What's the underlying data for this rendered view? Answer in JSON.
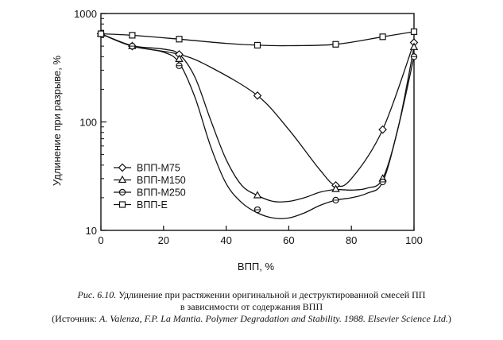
{
  "chart_data": {
    "type": "line",
    "ylabel": "Удлинение при разрыве, %",
    "xlabel": "ВПП, %",
    "x_ticks": [
      "0",
      "20",
      "40",
      "60",
      "80",
      "100"
    ],
    "y_ticks": [
      "10",
      "100",
      "1000"
    ],
    "xlim": [
      0,
      100
    ],
    "ylim": [
      10,
      1000
    ],
    "y_scale": "log",
    "legend_position": "bottom-left",
    "series": [
      {
        "name": "ВПП-М75",
        "marker": "diamond",
        "x": [
          0,
          10,
          25,
          50,
          75,
          90,
          100
        ],
        "y": [
          650,
          500,
          420,
          175,
          26,
          85,
          540
        ],
        "curve_x": [
          0,
          10,
          25,
          35,
          50,
          60,
          70,
          75,
          80,
          90,
          100
        ],
        "curve_y": [
          650,
          500,
          420,
          320,
          175,
          85,
          36,
          26,
          30,
          85,
          540
        ]
      },
      {
        "name": "ВПП-М150",
        "marker": "triangle",
        "x": [
          0,
          10,
          25,
          50,
          75,
          90,
          100
        ],
        "y": [
          650,
          500,
          380,
          21,
          24,
          30,
          490
        ],
        "curve_x": [
          0,
          10,
          20,
          25,
          30,
          35,
          40,
          45,
          50,
          55,
          60,
          65,
          70,
          75,
          80,
          85,
          90,
          95,
          100
        ],
        "curve_y": [
          650,
          505,
          470,
          420,
          260,
          105,
          45,
          26,
          21,
          18.5,
          18.5,
          20,
          22.5,
          23.8,
          23.5,
          24.5,
          30,
          90,
          490
        ]
      },
      {
        "name": "ВПП-М250",
        "marker": "circle",
        "x": [
          0,
          10,
          25,
          50,
          75,
          90,
          100
        ],
        "y": [
          650,
          500,
          330,
          15.5,
          19,
          28,
          400
        ],
        "curve_x": [
          0,
          10,
          20,
          25,
          30,
          35,
          40,
          45,
          50,
          55,
          60,
          65,
          70,
          75,
          80,
          85,
          90,
          95,
          100
        ],
        "curve_y": [
          650,
          500,
          440,
          350,
          170,
          60,
          27,
          18,
          14.5,
          13,
          13,
          14.5,
          17,
          19,
          20,
          22,
          28,
          90,
          400
        ]
      },
      {
        "name": "ВПП-Е",
        "marker": "square",
        "x": [
          0,
          10,
          25,
          50,
          75,
          90,
          100
        ],
        "y": [
          650,
          630,
          580,
          510,
          520,
          610,
          680
        ],
        "curve_x": [
          0,
          10,
          25,
          40,
          50,
          60,
          75,
          90,
          100
        ],
        "curve_y": [
          650,
          630,
          580,
          530,
          510,
          505,
          520,
          610,
          680
        ]
      }
    ]
  },
  "caption": {
    "fig_label": "Рис. 6.10.",
    "line1": "Удлинение при растяжении оригинальной и деструктированной смесей ПП",
    "line2": "в зависимости от содержания ВПП",
    "source_open": "(Источник: ",
    "source_italic": "A. Valenza, F.P. La Mantia. Polymer Degradation and Stability. 1988. Elsevier Science Ltd.",
    "source_close": ")"
  }
}
